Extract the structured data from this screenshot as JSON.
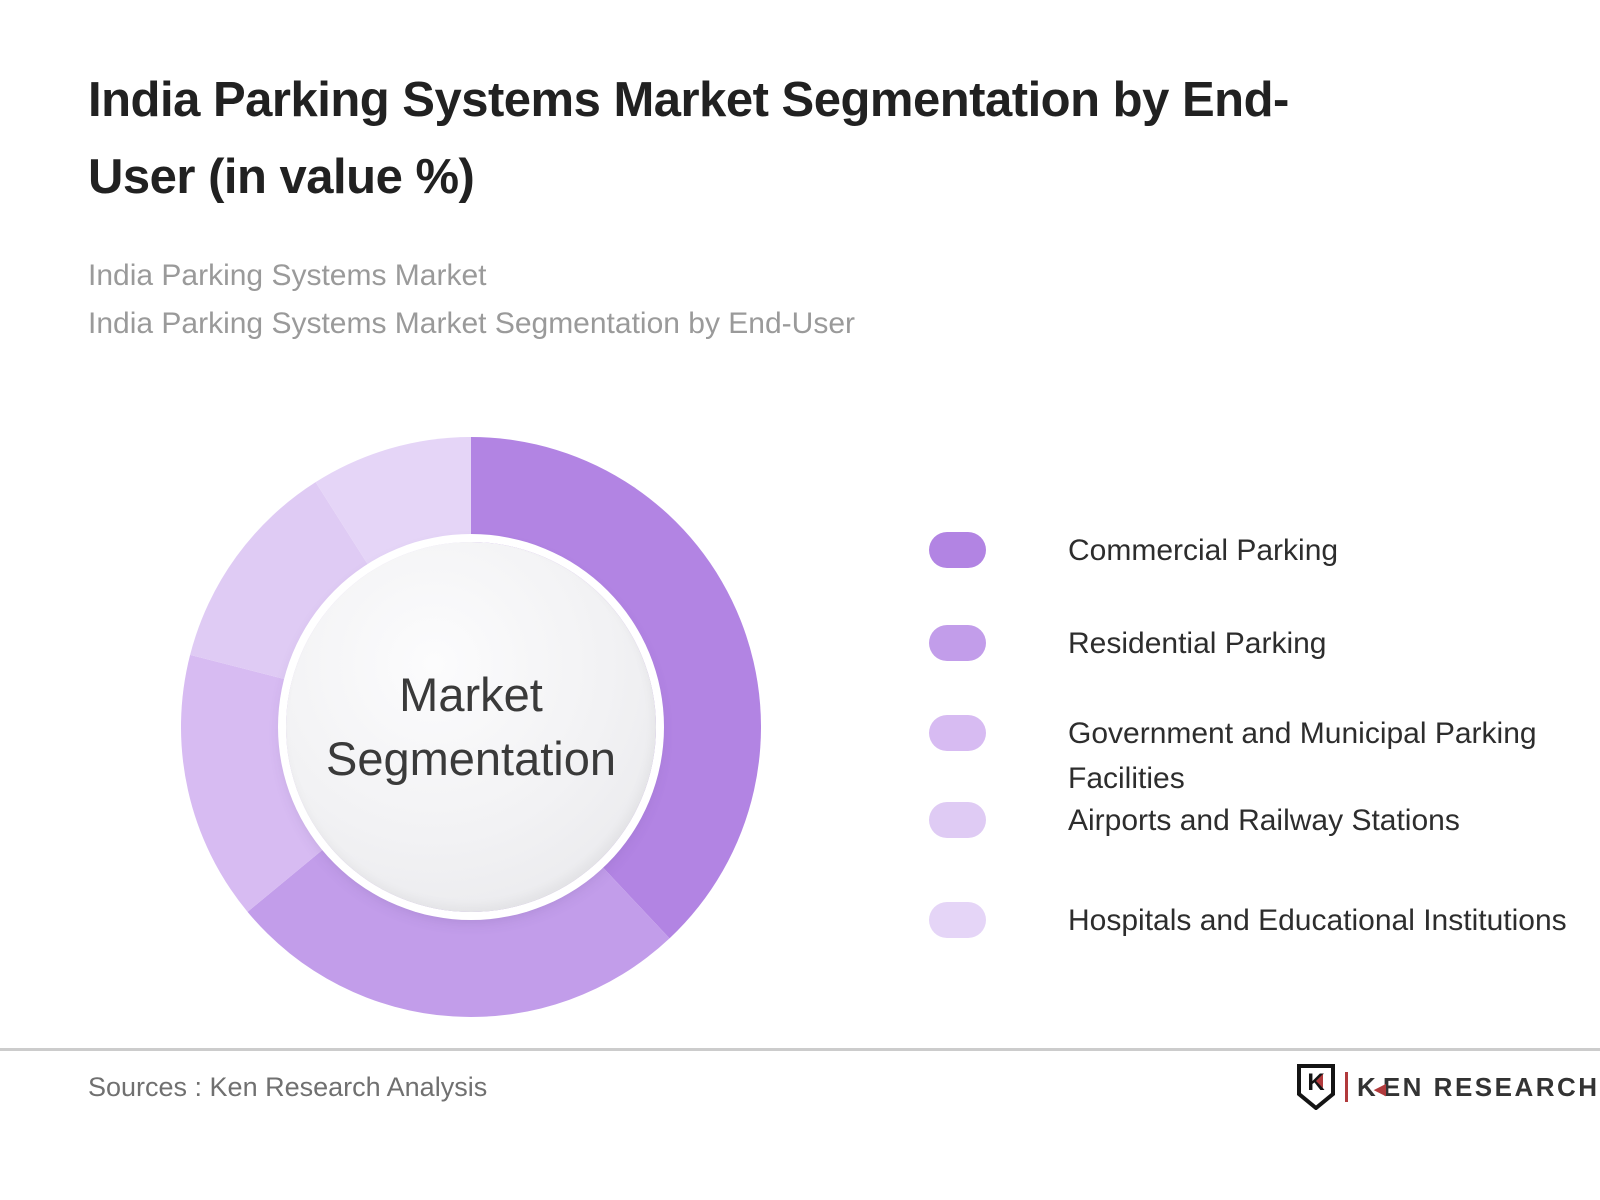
{
  "page": {
    "title": "India Parking Systems Market Segmentation by End-User (in value %)"
  },
  "subtitle": {
    "line1": "India Parking Systems Market",
    "line2": "India Parking Systems Market Segmentation by End-User"
  },
  "chart_data": {
    "type": "pie",
    "donut": true,
    "title": "India Parking Systems Market Segmentation by End-User (in value %)",
    "unit": "value %",
    "categories": [
      "Commercial Parking",
      "Residential Parking",
      "Government and Municipal Parking Facilities",
      "Airports and Railway Stations",
      "Hospitals and Educational Institutions"
    ],
    "values": [
      38,
      26,
      15,
      12,
      9
    ],
    "colors": [
      "#b284e3",
      "#c29dea",
      "#d7bbf2",
      "#dfcbf4",
      "#e5d5f7"
    ],
    "start_angle_deg": 0,
    "direction": "clockwise",
    "legend_position": "right",
    "center_label": {
      "line1": "Market",
      "line2": "Segmentation"
    }
  },
  "footer": {
    "source": "Sources : Ken Research Analysis",
    "logo": {
      "shield_letter": "K",
      "brand_first_letter": "K",
      "brand_arrow": "◀",
      "brand_rest": "EN RESEARCH"
    }
  }
}
